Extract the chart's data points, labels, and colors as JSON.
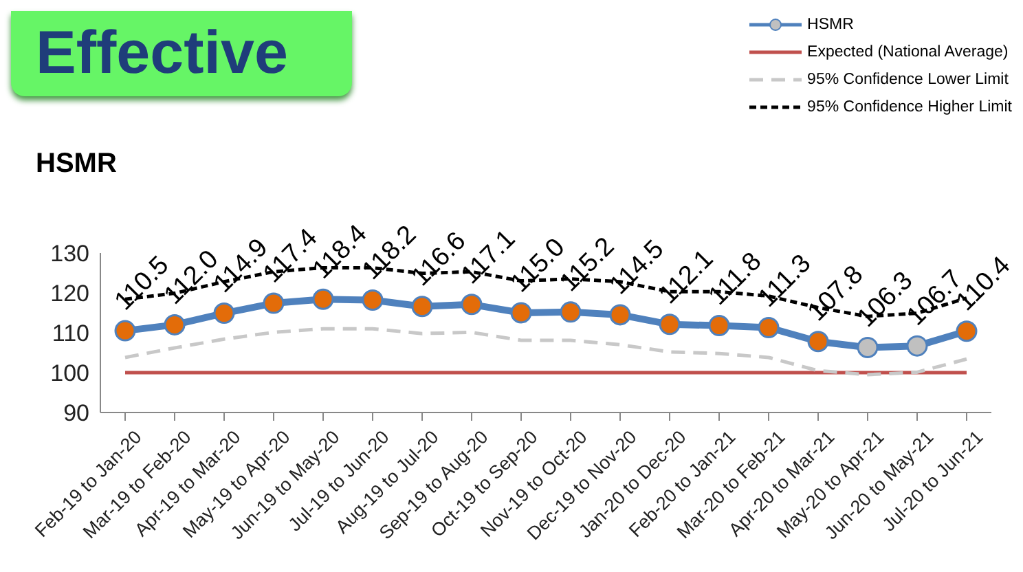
{
  "chart_data": {
    "type": "line",
    "title": "Effective",
    "subtitle": "HSMR",
    "categories": [
      "Feb-19 to Jan-20",
      "Mar-19 to Feb-20",
      "Apr-19 to Mar-20",
      "May-19 to Apr-20",
      "Jun-19 to May-20",
      "Jul-19 to Jun-20",
      "Aug-19 to Jul-20",
      "Sep-19 to Aug-20",
      "Oct-19 to Sep-20",
      "Nov-19 to Oct-20",
      "Dec-19 to Nov-20",
      "Jan-20 to Dec-20",
      "Feb-20 to Jan-21",
      "Mar-20 to Feb-21",
      "Apr-20 to Mar-21",
      "May-20 to Apr-21",
      "Jun-20 to May-21",
      "Jul-20 to Jun-21"
    ],
    "series": [
      {
        "name": "HSMR",
        "color": "#4f81bd",
        "marker": "circle",
        "line_style": "solid",
        "values": [
          110.5,
          112.0,
          114.9,
          117.4,
          118.4,
          118.2,
          116.6,
          117.1,
          115.0,
          115.2,
          114.5,
          112.1,
          111.8,
          111.3,
          107.8,
          106.3,
          106.7,
          110.4
        ],
        "value_labels": [
          "110.5",
          "112.0",
          "114.9",
          "117.4",
          "118.4",
          "118.2",
          "116.6",
          "117.1",
          "115.0",
          "115.2",
          "114.5",
          "112.1",
          "111.8",
          "111.3",
          "107.8",
          "106.3",
          "106.7",
          "110.4"
        ],
        "colors": [
          "#e36c09",
          "#e36c09",
          "#e36c09",
          "#e36c09",
          "#e36c09",
          "#e36c09",
          "#e36c09",
          "#e36c09",
          "#e36c09",
          "#e36c09",
          "#e36c09",
          "#e36c09",
          "#e36c09",
          "#e36c09",
          "#e36c09",
          "#c0c0c0",
          "#c0c0c0",
          "#e36c09"
        ]
      },
      {
        "name": "Expected (National Average)",
        "color": "#c0504d",
        "marker": "none",
        "line_style": "solid",
        "values": [
          100,
          100,
          100,
          100,
          100,
          100,
          100,
          100,
          100,
          100,
          100,
          100,
          100,
          100,
          100,
          100,
          100,
          100
        ]
      },
      {
        "name": "95% Confidence Lower Limit",
        "color": "#c8c8c8",
        "marker": "none",
        "line_style": "dashed",
        "values": [
          103.8,
          106.2,
          108.4,
          110.1,
          111.0,
          111.0,
          109.8,
          110.1,
          108.1,
          108.1,
          107.0,
          105.2,
          104.8,
          103.8,
          100.5,
          99.5,
          100.1,
          103.4
        ]
      },
      {
        "name": "95% Confidence Higher Limit",
        "color": "#000000",
        "marker": "none",
        "line_style": "dotted",
        "values": [
          118.4,
          119.9,
          122.8,
          125.3,
          126.3,
          126.3,
          124.9,
          125.3,
          123.0,
          123.5,
          122.8,
          120.3,
          120.3,
          119.2,
          116.3,
          114.1,
          114.9,
          118.7
        ]
      }
    ],
    "ylim": [
      90,
      130
    ],
    "yticks": [
      90,
      100,
      110,
      120,
      130
    ],
    "legend": "top right"
  }
}
